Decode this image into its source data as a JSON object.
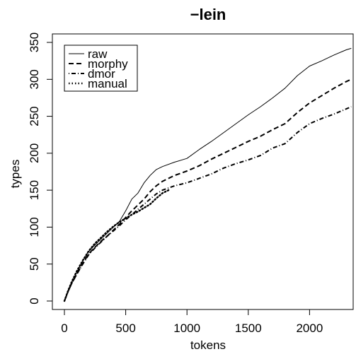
{
  "chart_data": {
    "type": "line",
    "title": "−lein",
    "xlabel": "tokens",
    "ylabel": "types",
    "xlim": [
      0,
      2350
    ],
    "ylim": [
      0,
      350
    ],
    "xticks": [
      0,
      500,
      1000,
      1500,
      2000
    ],
    "yticks": [
      0,
      50,
      100,
      150,
      200,
      250,
      300,
      350
    ],
    "grid": false,
    "legend_position": "top-left",
    "series": [
      {
        "name": "raw",
        "line_style": "solid",
        "x": [
          0,
          30,
          60,
          100,
          150,
          200,
          250,
          300,
          350,
          400,
          450,
          500,
          550,
          600,
          650,
          700,
          750,
          800,
          900,
          1000,
          1100,
          1200,
          1300,
          1400,
          1500,
          1600,
          1700,
          1800,
          1900,
          2000,
          2100,
          2200,
          2300,
          2340
        ],
        "values": [
          0,
          14,
          25,
          38,
          54,
          67,
          76,
          84,
          92,
          100,
          108,
          122,
          138,
          146,
          160,
          170,
          178,
          182,
          188,
          193,
          205,
          216,
          228,
          240,
          252,
          263,
          275,
          288,
          305,
          318,
          325,
          333,
          340,
          342
        ]
      },
      {
        "name": "morphy",
        "line_style": "dashed",
        "x": [
          0,
          30,
          60,
          100,
          150,
          200,
          250,
          300,
          350,
          400,
          450,
          500,
          550,
          600,
          650,
          700,
          750,
          800,
          900,
          1000,
          1100,
          1200,
          1300,
          1400,
          1500,
          1600,
          1700,
          1800,
          1900,
          2000,
          2100,
          2200,
          2300,
          2340
        ],
        "values": [
          0,
          13,
          24,
          36,
          51,
          64,
          73,
          81,
          88,
          96,
          104,
          113,
          122,
          130,
          138,
          148,
          156,
          162,
          170,
          176,
          183,
          192,
          200,
          208,
          216,
          223,
          232,
          240,
          255,
          268,
          278,
          288,
          297,
          300
        ]
      },
      {
        "name": "dmor",
        "line_style": "dotdash",
        "x": [
          0,
          30,
          60,
          100,
          150,
          200,
          250,
          300,
          350,
          400,
          450,
          500,
          550,
          600,
          650,
          700,
          750,
          800,
          900,
          1000,
          1100,
          1200,
          1300,
          1400,
          1500,
          1600,
          1700,
          1800,
          1900,
          2000,
          2100,
          2200,
          2300,
          2340
        ],
        "values": [
          0,
          13,
          24,
          36,
          50,
          63,
          72,
          80,
          88,
          95,
          102,
          110,
          117,
          124,
          131,
          138,
          145,
          150,
          156,
          160,
          166,
          172,
          180,
          186,
          191,
          197,
          207,
          213,
          228,
          240,
          247,
          253,
          260,
          263
        ]
      },
      {
        "name": "manual",
        "line_style": "dotted",
        "x": [
          0,
          30,
          60,
          100,
          150,
          200,
          250,
          300,
          350,
          400,
          450,
          500,
          550,
          600,
          650,
          700,
          750,
          800,
          850
        ],
        "values": [
          0,
          14,
          26,
          40,
          55,
          68,
          78,
          86,
          94,
          101,
          107,
          112,
          117,
          121,
          126,
          131,
          139,
          146,
          150
        ]
      }
    ]
  }
}
